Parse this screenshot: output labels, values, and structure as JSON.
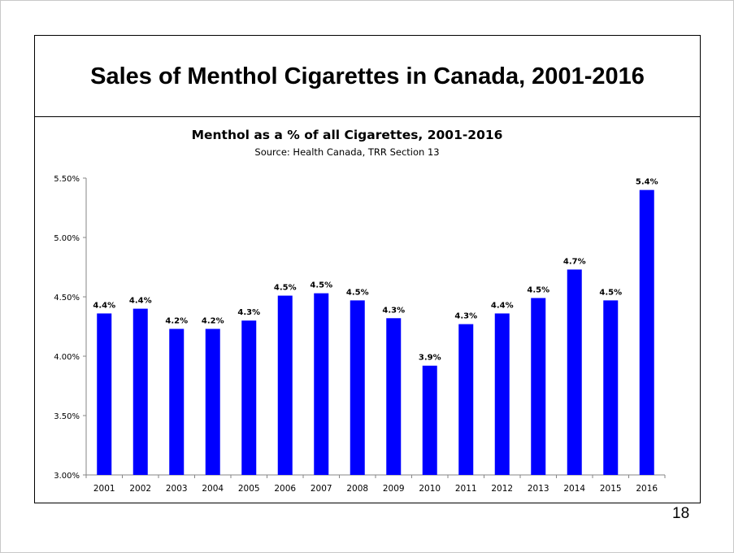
{
  "slide": {
    "title": "Sales of Menthol Cigarettes in Canada, 2001-2016",
    "page_number": "18"
  },
  "chart_data": {
    "type": "bar",
    "title": "Menthol as a % of all Cigarettes, 2001-2016",
    "subtitle": "Source: Health Canada, TRR Section 13",
    "categories": [
      "2001",
      "2002",
      "2003",
      "2004",
      "2005",
      "2006",
      "2007",
      "2008",
      "2009",
      "2010",
      "2011",
      "2012",
      "2013",
      "2014",
      "2015",
      "2016"
    ],
    "values": [
      4.36,
      4.4,
      4.23,
      4.23,
      4.3,
      4.51,
      4.53,
      4.47,
      4.32,
      3.92,
      4.27,
      4.36,
      4.49,
      4.73,
      4.47,
      5.4
    ],
    "data_labels": [
      "4.4%",
      "4.4%",
      "4.2%",
      "4.2%",
      "4.3%",
      "4.5%",
      "4.5%",
      "4.5%",
      "4.3%",
      "3.9%",
      "4.3%",
      "4.4%",
      "4.5%",
      "4.7%",
      "4.5%",
      "5.4%"
    ],
    "ylim": [
      3.0,
      5.5
    ],
    "yticks": [
      "3.00%",
      "3.50%",
      "4.00%",
      "4.50%",
      "5.00%",
      "5.50%"
    ],
    "ytick_values": [
      3.0,
      3.5,
      4.0,
      4.5,
      5.0,
      5.5
    ],
    "xlabel": "",
    "ylabel": "",
    "grid": false,
    "legend": "none",
    "bar_color": "#0000ff"
  }
}
